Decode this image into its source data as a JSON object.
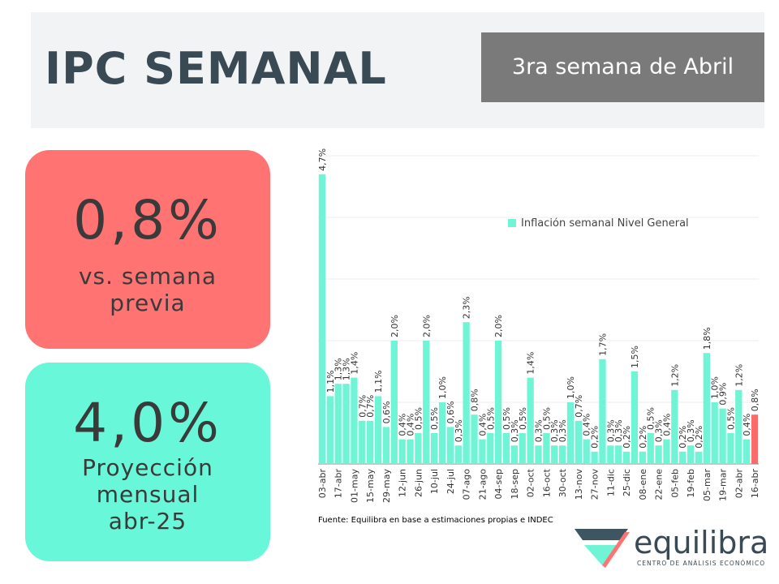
{
  "header": {
    "title": "IPC SEMANAL",
    "subtitle": "3ra semana de Abril"
  },
  "cards": [
    {
      "value": "0,8%",
      "lines": [
        "vs. semana",
        "previa"
      ],
      "color": "#ff7373"
    },
    {
      "value": "4,0%",
      "lines": [
        "Proyección",
        "mensual",
        "abr-25"
      ],
      "color": "#68f7d8"
    }
  ],
  "chart_data": {
    "type": "bar",
    "categories": [
      "03-abr",
      null,
      "17-abr",
      null,
      "01-may",
      null,
      "15-may",
      null,
      "29-may",
      null,
      "12-jun",
      null,
      "26-jun",
      null,
      "10-jul",
      null,
      "24-jul",
      null,
      "07-ago",
      null,
      "21-ago",
      null,
      "04-sep",
      null,
      "18-sep",
      null,
      "02-oct",
      null,
      "16-oct",
      null,
      "30-oct",
      null,
      "13-nov",
      null,
      "27-nov",
      null,
      "11-dic",
      null,
      "25-dic",
      null,
      "08-ene",
      null,
      "22-ene",
      null,
      "05-feb",
      null,
      "19-feb",
      null,
      "05-mar",
      null,
      "19-mar",
      null,
      "02-abr",
      null,
      "16-abr"
    ],
    "series": [
      {
        "name": "Inflación semanal Nivel General",
        "color": "#6ff5d6",
        "values": [
          4.7,
          1.1,
          1.3,
          1.3,
          1.4,
          0.7,
          0.7,
          1.1,
          0.6,
          2.0,
          0.4,
          0.4,
          0.5,
          2.0,
          0.5,
          1.0,
          0.6,
          0.3,
          2.3,
          0.8,
          0.4,
          0.5,
          2.0,
          0.5,
          0.3,
          0.5,
          1.4,
          0.3,
          0.5,
          0.3,
          0.3,
          1.0,
          0.7,
          0.4,
          0.2,
          1.7,
          0.3,
          0.3,
          0.2,
          1.5,
          0.2,
          0.5,
          0.3,
          0.4,
          1.2,
          0.2,
          0.3,
          0.2,
          1.8,
          1.0,
          0.9,
          0.5,
          1.2,
          0.4,
          0.8
        ],
        "value_labels": [
          "4,7%",
          "1,1%",
          "1,3%",
          "1,3%",
          "1,4%",
          "0,7%",
          "0,7%",
          "1,1%",
          "0,6%",
          "2,0%",
          "0,4%",
          "0,4%",
          "0,5%",
          "2,0%",
          "0,5%",
          "1,0%",
          "0,6%",
          "0,3%",
          "2,3%",
          "0,8%",
          "0,4%",
          "0,5%",
          "2,0%",
          "0,5%",
          "0,3%",
          "0,5%",
          "1,4%",
          "0,3%",
          "0,5%",
          "0,3%",
          "0,3%",
          "1,0%",
          "0,7%",
          "0,4%",
          "0,2%",
          "1,7%",
          "0,3%",
          "0,3%",
          "0,2%",
          "1,5%",
          "0,2%",
          "0,5%",
          "0,3%",
          "0,4%",
          "1,2%",
          "0,2%",
          "0,3%",
          "0,2%",
          "1,8%",
          "1,0%",
          "0,9%",
          "0,5%",
          "1,2%",
          "0,4%",
          "0,8%"
        ],
        "highlight_color": "#fb6b6b"
      }
    ],
    "ylim": [
      0,
      5
    ],
    "yticks": [
      0,
      1,
      2,
      3,
      4,
      5
    ],
    "grid": true,
    "source": "Fuente: Equilibra en base a estimaciones propias e INDEC"
  },
  "logo": {
    "name": "equilibra",
    "tagline": "CENTRO DE ANÁLISIS ECONÓMICO"
  }
}
